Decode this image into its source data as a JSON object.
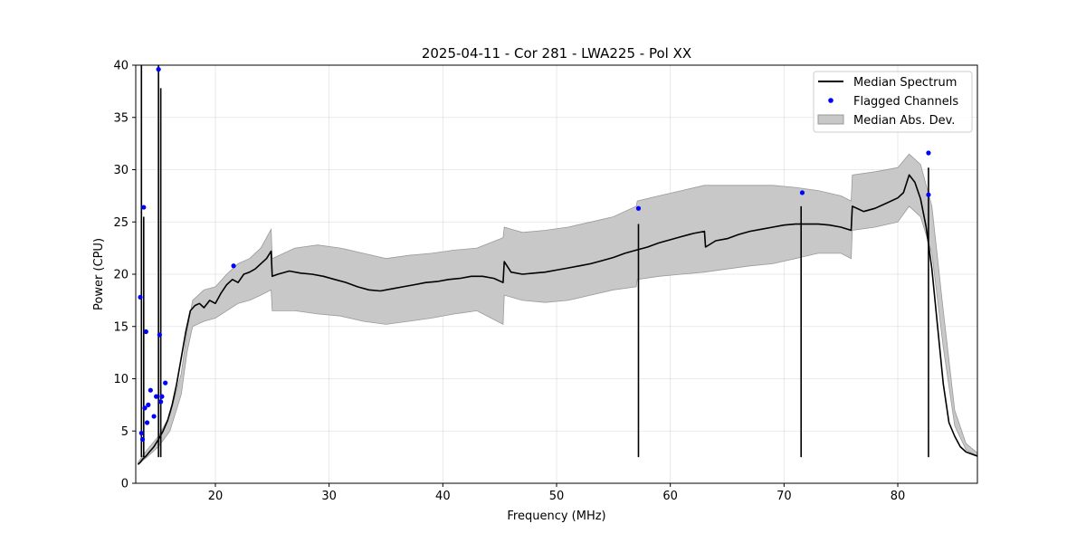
{
  "chart_data": {
    "type": "line",
    "title": "2025-04-11 - Cor 281 - LWA225 - Pol XX",
    "xlabel": "Frequency (MHz)",
    "ylabel": "Power (CPU)",
    "xlim": [
      13.0,
      87.0
    ],
    "ylim": [
      0,
      40
    ],
    "xticks": [
      20,
      30,
      40,
      50,
      60,
      70,
      80
    ],
    "yticks": [
      0,
      5,
      10,
      15,
      20,
      25,
      30,
      35,
      40
    ],
    "grid": true,
    "legend_position": "top-right",
    "legend": [
      {
        "label": "Median Spectrum",
        "kind": "line",
        "color": "#000000"
      },
      {
        "label": "Flagged Channels",
        "kind": "marker",
        "color": "#0000ff"
      },
      {
        "label": "Median Abs. Dev.",
        "kind": "band",
        "color": "#c8c8c8"
      }
    ],
    "series": [
      {
        "name": "Median Spectrum",
        "color": "#000000",
        "x": [
          13.2,
          13.4,
          13.6,
          13.9,
          14.2,
          14.6,
          15.0,
          15.4,
          15.8,
          16.2,
          16.6,
          17.0,
          17.4,
          17.8,
          18.2,
          18.6,
          19.0,
          19.5,
          20.0,
          20.5,
          21.0,
          21.5,
          22.0,
          22.5,
          23.0,
          23.5,
          24.0,
          24.5,
          24.9,
          25.0,
          25.5,
          26.5,
          27.5,
          28.5,
          29.5,
          30.5,
          31.5,
          32.5,
          33.5,
          34.5,
          35.5,
          36.5,
          37.5,
          38.5,
          39.5,
          40.5,
          41.5,
          42.5,
          43.5,
          44.5,
          45.3,
          45.4,
          46.0,
          47.0,
          48.0,
          49.0,
          50.0,
          51.0,
          52.0,
          53.0,
          54.0,
          55.0,
          56.0,
          57.0,
          58.0,
          59.0,
          60.0,
          61.0,
          62.0,
          63.0,
          63.1,
          64.0,
          65.0,
          66.0,
          67.0,
          68.0,
          69.0,
          70.0,
          71.0,
          72.0,
          73.0,
          74.0,
          75.0,
          75.9,
          76.0,
          77.0,
          78.0,
          79.0,
          80.0,
          80.5,
          81.0,
          81.5,
          82.0,
          82.5,
          83.0,
          83.5,
          84.0,
          84.5,
          85.0,
          85.5,
          86.0,
          86.5,
          87.0
        ],
        "y": [
          1.8,
          2.0,
          2.3,
          2.6,
          3.0,
          3.5,
          4.2,
          5.0,
          6.0,
          7.5,
          9.5,
          12.0,
          14.5,
          16.5,
          17.0,
          17.2,
          16.8,
          17.5,
          17.2,
          18.2,
          19.0,
          19.5,
          19.2,
          20.0,
          20.2,
          20.5,
          21.0,
          21.5,
          22.2,
          19.8,
          20.0,
          20.3,
          20.1,
          20.0,
          19.8,
          19.5,
          19.2,
          18.8,
          18.5,
          18.4,
          18.6,
          18.8,
          19.0,
          19.2,
          19.3,
          19.5,
          19.6,
          19.8,
          19.8,
          19.6,
          19.2,
          21.2,
          20.2,
          20.0,
          20.1,
          20.2,
          20.4,
          20.6,
          20.8,
          21.0,
          21.3,
          21.6,
          22.0,
          22.3,
          22.6,
          23.0,
          23.3,
          23.6,
          23.9,
          24.1,
          22.6,
          23.2,
          23.4,
          23.8,
          24.1,
          24.3,
          24.5,
          24.7,
          24.8,
          24.8,
          24.8,
          24.7,
          24.5,
          24.2,
          26.5,
          26.0,
          26.3,
          26.8,
          27.3,
          27.8,
          29.5,
          28.8,
          27.2,
          24.5,
          20.5,
          15.0,
          9.5,
          5.8,
          4.5,
          3.5,
          3.0,
          2.8,
          2.6
        ]
      }
    ],
    "band": {
      "name": "Median Abs. Dev.",
      "color": "#c8c8c8",
      "x": [
        13.2,
        14.0,
        15.0,
        16.0,
        17.0,
        17.5,
        18.0,
        19.0,
        20.0,
        21.0,
        22.0,
        23.0,
        24.0,
        24.9,
        25.0,
        27.0,
        29.0,
        31.0,
        33.0,
        35.0,
        37.0,
        39.0,
        41.0,
        43.0,
        45.3,
        45.4,
        47.0,
        49.0,
        51.0,
        53.0,
        55.0,
        57.0,
        57.1,
        59.0,
        61.0,
        63.0,
        65.0,
        67.0,
        69.0,
        71.0,
        73.0,
        75.0,
        75.9,
        76.0,
        78.0,
        80.0,
        81.0,
        82.0,
        83.0,
        84.0,
        85.0,
        86.0,
        87.0
      ],
      "lower": [
        1.8,
        2.5,
        3.5,
        5.0,
        8.5,
        12.5,
        15.0,
        15.5,
        15.8,
        16.5,
        17.2,
        17.5,
        18.0,
        18.5,
        16.5,
        16.5,
        16.2,
        16.0,
        15.5,
        15.2,
        15.5,
        15.8,
        16.2,
        16.5,
        15.2,
        18.0,
        17.5,
        17.3,
        17.5,
        18.0,
        18.5,
        18.8,
        19.5,
        19.8,
        20.0,
        20.2,
        20.5,
        20.8,
        21.0,
        21.5,
        22.0,
        22.0,
        21.5,
        24.2,
        24.5,
        25.0,
        26.5,
        25.5,
        22.0,
        13.0,
        5.5,
        3.2,
        2.6
      ],
      "upper": [
        2.0,
        3.2,
        4.5,
        6.5,
        10.5,
        14.5,
        17.5,
        18.5,
        18.8,
        20.0,
        21.0,
        21.5,
        22.5,
        24.3,
        21.5,
        22.5,
        22.8,
        22.5,
        22.0,
        21.5,
        21.8,
        22.0,
        22.3,
        22.5,
        23.5,
        24.5,
        24.0,
        24.2,
        24.5,
        25.0,
        25.5,
        26.5,
        27.0,
        27.5,
        28.0,
        28.5,
        28.5,
        28.5,
        28.5,
        28.3,
        28.0,
        27.5,
        27.0,
        29.5,
        29.8,
        30.2,
        31.5,
        30.5,
        26.5,
        16.5,
        7.0,
        3.8,
        2.9
      ]
    },
    "spikes": [
      {
        "x": 13.5,
        "y": 40.0
      },
      {
        "x": 13.7,
        "y": 25.5
      },
      {
        "x": 15.0,
        "y": 40.0
      },
      {
        "x": 15.2,
        "y": 37.8
      },
      {
        "x": 57.2,
        "y": 24.8
      },
      {
        "x": 71.5,
        "y": 26.5
      },
      {
        "x": 82.7,
        "y": 30.2
      }
    ],
    "flagged_channels": {
      "name": "Flagged Channels",
      "color": "#0000ff",
      "x": [
        13.4,
        13.5,
        13.6,
        13.7,
        13.8,
        13.9,
        14.0,
        14.1,
        14.3,
        14.6,
        14.8,
        15.0,
        15.1,
        15.2,
        15.3,
        15.6,
        21.6,
        57.2,
        71.6,
        82.7,
        82.7
      ],
      "y": [
        17.8,
        4.8,
        4.2,
        26.4,
        7.2,
        14.5,
        5.8,
        7.5,
        8.9,
        6.4,
        8.3,
        39.6,
        14.2,
        7.8,
        8.3,
        9.6,
        20.8,
        26.3,
        27.8,
        31.6,
        27.6
      ]
    }
  }
}
